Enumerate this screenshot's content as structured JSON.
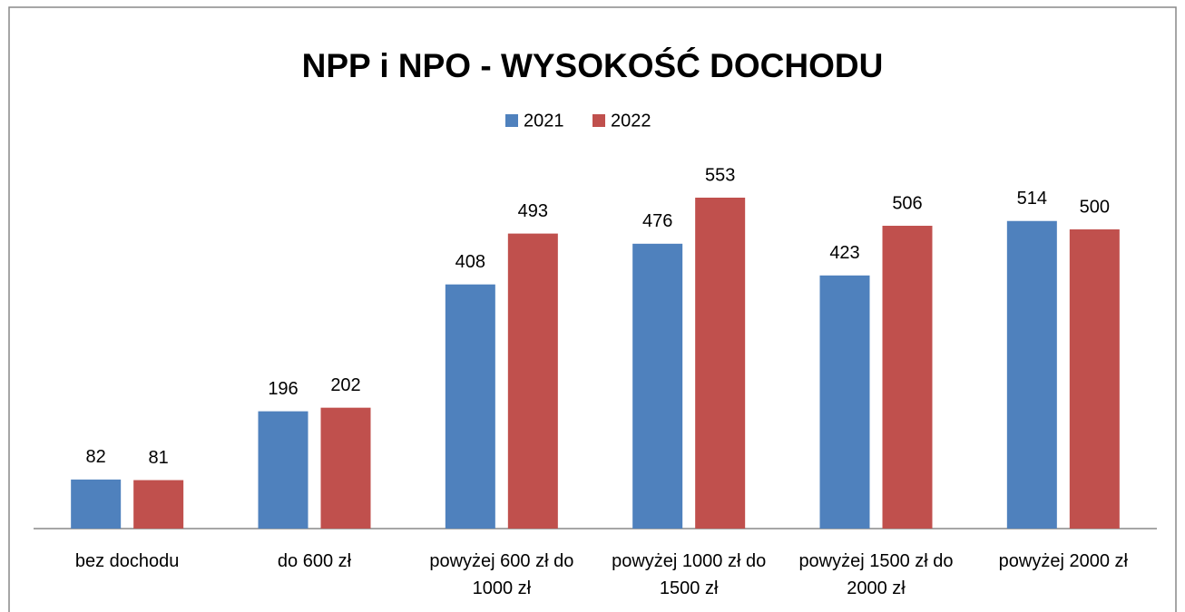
{
  "chart_data": {
    "type": "bar",
    "title": "NPP i NPO - WYSOKOŚĆ DOCHODU",
    "categories": [
      "bez dochodu",
      "do 600 zł",
      "powyżej 600 zł do 1000 zł",
      "powyżej 1000 zł do 1500 zł",
      "powyżej 1500 zł do 2000 zł",
      "powyżej 2000 zł"
    ],
    "series": [
      {
        "name": "2021",
        "color": "#4f81bd",
        "values": [
          82,
          196,
          408,
          476,
          423,
          514
        ]
      },
      {
        "name": "2022",
        "color": "#c0504d",
        "values": [
          81,
          202,
          493,
          553,
          506,
          500
        ]
      }
    ],
    "legend": "top"
  }
}
